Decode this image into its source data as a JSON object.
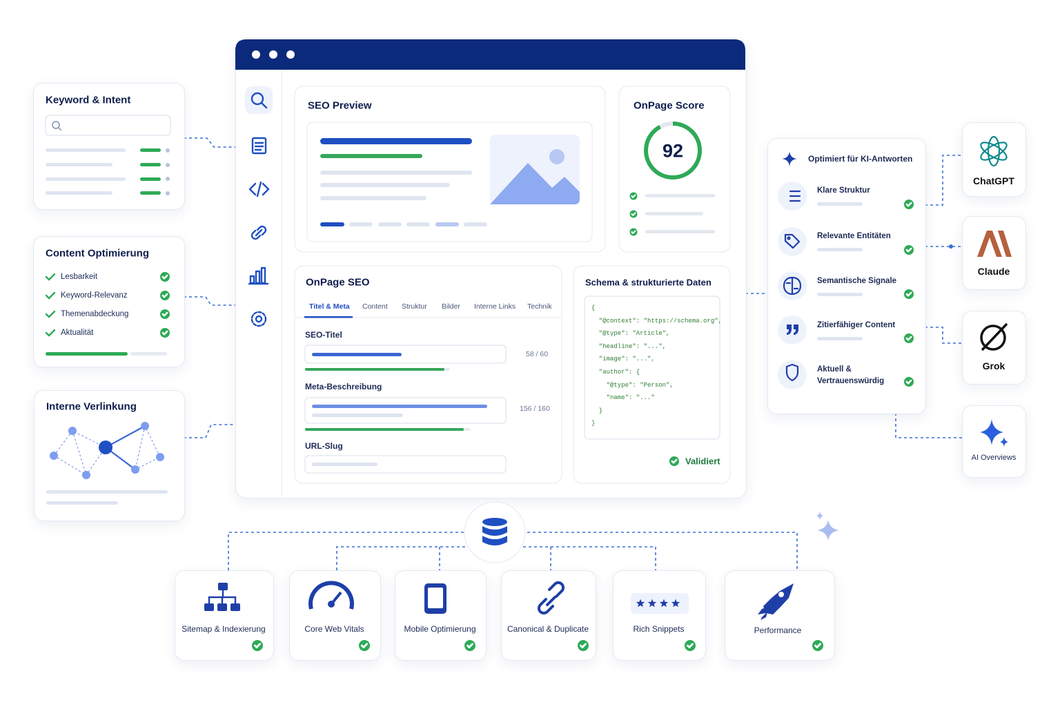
{
  "keyword_panel": {
    "title": "Keyword & Intent"
  },
  "content_panel": {
    "title": "Content Optimierung",
    "items": [
      "Lesbarkeit",
      "Keyword-Relevanz",
      "Themenabdeckung",
      "Aktualität"
    ]
  },
  "linking_panel": {
    "title": "Interne Verlinkung"
  },
  "seo_preview": {
    "title": "SEO Preview"
  },
  "onpage_score": {
    "title": "OnPage Score",
    "score": 92
  },
  "onpage_seo": {
    "title": "OnPage SEO",
    "tabs": [
      "Titel & Meta",
      "Content",
      "Struktur",
      "Bilder",
      "Interne Links",
      "Technik"
    ],
    "fields": [
      {
        "label": "SEO-Titel",
        "count": "58 / 60"
      },
      {
        "label": "Meta-Beschreibung",
        "count": "156 / 160"
      },
      {
        "label": "URL-Slug"
      }
    ]
  },
  "schema": {
    "title": "Schema & strukturierte Daten",
    "code": [
      "{",
      "  \"@context\": \"https://schema.org\",",
      "  \"@type\": \"Article\",",
      "  \"headline\": \"...\",",
      "  \"image\": \"...\",",
      "  \"author\": {",
      "    \"@type\": \"Person\",",
      "    \"name\": \"...\"",
      "  }",
      "}"
    ],
    "status": "Validiert"
  },
  "ai_panel": {
    "title": "Optimiert für KI-Antworten",
    "items": [
      "Klare Struktur",
      "Relevante Entitäten",
      "Semantische Signale",
      "Zitierfähiger Content",
      "Aktuell & Vertrauenswürdig"
    ]
  },
  "ai_platforms": [
    "ChatGPT",
    "Claude",
    "Grok",
    "AI Overviews"
  ],
  "technical": [
    "Sitemap & Indexierung",
    "Core Web Vitals",
    "Mobile Optimierung",
    "Canonical & Duplicate",
    "Rich Snippets",
    "Performance"
  ]
}
